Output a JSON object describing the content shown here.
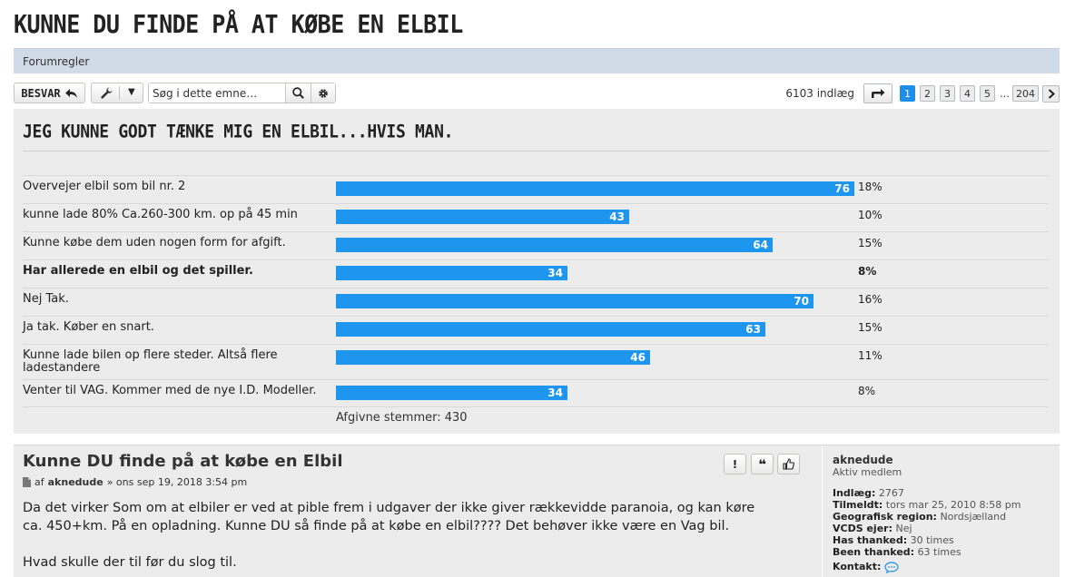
{
  "topic": {
    "title": "KUNNE DU FINDE PÅ AT KØBE EN ELBIL"
  },
  "forumrules": {
    "label": "Forumregler"
  },
  "toolbar": {
    "reply_label": "BESVAR",
    "search_placeholder": "Søg i dette emne…",
    "post_count": "6103 indlæg",
    "pages": [
      "1",
      "2",
      "3",
      "4",
      "5"
    ],
    "ellipsis": "…",
    "last_page": "204",
    "current_page": 1
  },
  "poll": {
    "title": "JEG KUNNE GODT TÆNKE MIG EN ELBIL...HVIS MAN.",
    "bar_color": "#1e96f0",
    "options": [
      {
        "label": "Overvejer elbil som bil nr. 2",
        "votes": "76",
        "percent": "18%",
        "bold": false
      },
      {
        "label": "kunne lade 80% Ca.260-300 km. op på 45 min",
        "votes": "43",
        "percent": "10%",
        "bold": false
      },
      {
        "label": "Kunne købe dem uden nogen form for afgift.",
        "votes": "64",
        "percent": "15%",
        "bold": false
      },
      {
        "label": "Har allerede en elbil og det spiller.",
        "votes": "34",
        "percent": "8%",
        "bold": true
      },
      {
        "label": "Nej Tak.",
        "votes": "70",
        "percent": "16%",
        "bold": false
      },
      {
        "label": "Ja tak. Køber en snart.",
        "votes": "63",
        "percent": "15%",
        "bold": false
      },
      {
        "label": "Kunne lade bilen op flere steder. Altså flere ladestandere",
        "votes": "46",
        "percent": "11%",
        "bold": false
      },
      {
        "label": "Venter til VAG. Kommer med de nye I.D. Modeller.",
        "votes": "34",
        "percent": "8%",
        "bold": false
      }
    ],
    "total_votes": "Afgivne stemmer: 430"
  },
  "post": {
    "title": "Kunne DU finde på at købe en Elbil",
    "meta_prefix": "af",
    "author": "aknedude",
    "date": "» ons sep 19, 2018 3:54 pm",
    "body": [
      "Da det virker Som om at elbiler er ved at pible frem i udgaver der ikke giver rækkevidde paranoia, og kan køre ca. 450+km. På en opladning. Kunne DU så finde på at købe en elbil???? Det behøver ikke være en Vag bil.",
      "Hvad skulle der til før du slog til."
    ],
    "buttons": {
      "report": "!",
      "quote": "❝"
    }
  },
  "profile": {
    "name": "aknedude",
    "rank": "Aktiv medlem",
    "fields": [
      {
        "label": "Indlæg:",
        "value": "2767"
      },
      {
        "label": "Tilmeldt:",
        "value": "tors mar 25, 2010 8:58 pm"
      },
      {
        "label": "Geografisk region:",
        "value": "Nordsjælland"
      },
      {
        "label": "VCDS ejer:",
        "value": "Nej"
      },
      {
        "label": "Has thanked:",
        "value": "30 times"
      },
      {
        "label": "Been thanked:",
        "value": "63 times"
      },
      {
        "label": "Kontakt:",
        "value": ""
      }
    ]
  }
}
